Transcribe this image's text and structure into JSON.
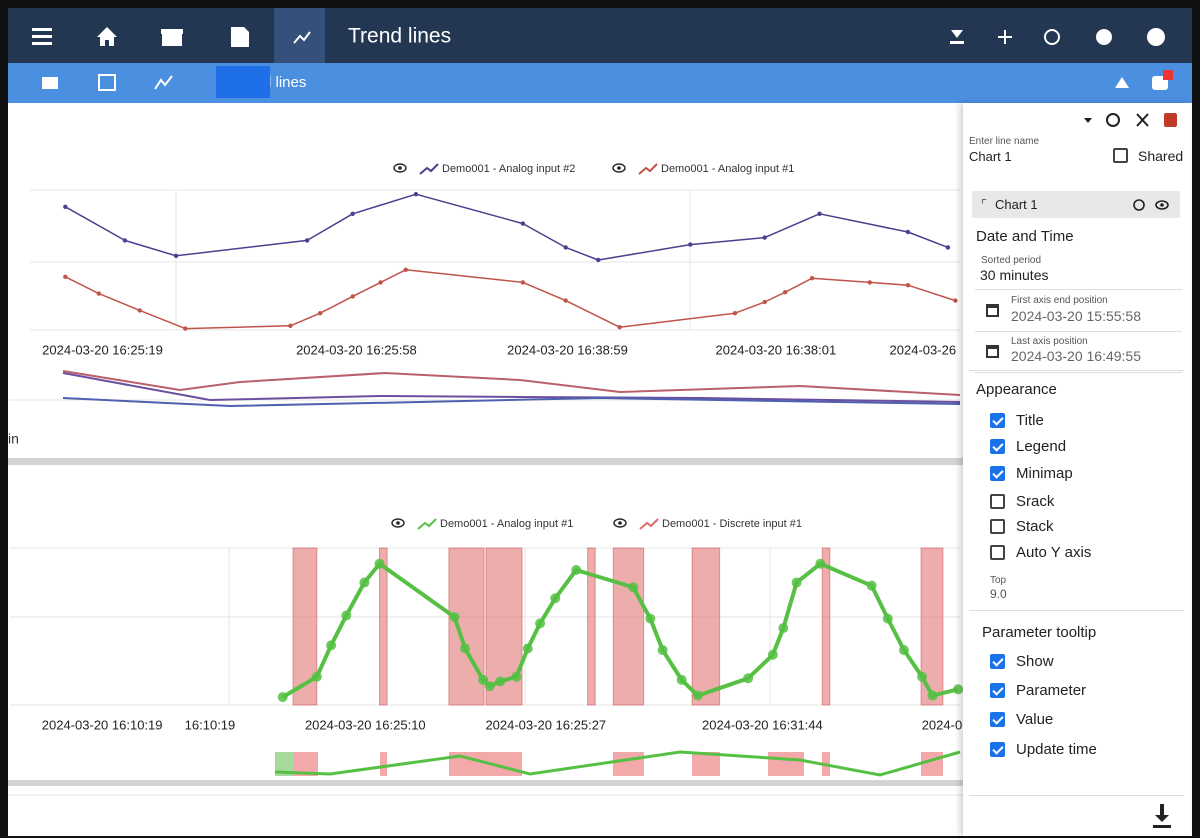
{
  "toolbar": {
    "title": "Trend lines"
  },
  "subbar": {
    "title": "d lines"
  },
  "side_text": "in",
  "charts": [
    {
      "type": "line",
      "xlim": [
        0,
        100
      ],
      "ylim": [
        0,
        100
      ],
      "xticks": [
        {
          "value": 7.8,
          "label": "2024-03-20 16:25:19"
        },
        {
          "value": 35.1,
          "label": "2024-03-20 16:25:58"
        },
        {
          "value": 57.8,
          "label": "2024-03-20 16:38:59"
        },
        {
          "value": 80.2,
          "label": "2024-03-20 16:38:01"
        },
        {
          "value": 96,
          "label": "2024-03-26"
        }
      ],
      "series": [
        {
          "name": "Demo001 - Analog input #2",
          "color": "#4b3f8f",
          "x": [
            3.8,
            10.2,
            15.7,
            29.8,
            34.7,
            41.5,
            53,
            57.6,
            61.1,
            71,
            79,
            84.9,
            94.4,
            98.7
          ],
          "values": [
            88,
            64,
            53,
            64,
            83,
            97,
            76,
            59,
            50,
            61,
            66,
            83,
            70,
            59
          ]
        },
        {
          "name": "Demo001 - Analog input #1",
          "color": "#c0544a",
          "x": [
            3.8,
            7.4,
            11.8,
            16.7,
            28,
            31.2,
            34.7,
            37.7,
            40.4,
            53,
            57.6,
            63.4,
            75.8,
            79,
            81.2,
            84.1,
            90.3,
            94.4,
            99.5
          ],
          "values": [
            38,
            26,
            14,
            1,
            3,
            12,
            24,
            34,
            43,
            34,
            21,
            2,
            12,
            20,
            27,
            37,
            34,
            32,
            21
          ]
        }
      ]
    },
    {
      "type": "line",
      "xlim": [
        0,
        100
      ],
      "ylim": [
        0,
        100
      ],
      "xticks": [
        {
          "value": 9.7,
          "label": "2024-03-20 16:10:19"
        },
        {
          "value": 21.05,
          "label": "16:10:19"
        },
        {
          "value": 37.4,
          "label": "2024-03-20 16:25:10"
        },
        {
          "value": 56.4,
          "label": "2024-03-20 16:25:27"
        },
        {
          "value": 79.2,
          "label": "2024-03-20 16:31:44"
        },
        {
          "value": 98.1,
          "label": "2024-0"
        }
      ],
      "series": [
        {
          "name": "Demo001 - Analog input #1",
          "color": "#55c043",
          "x": [
            28.7,
            32.3,
            33.8,
            35.4,
            37.3,
            38.9,
            46.8,
            47.9,
            49.8,
            50.5,
            51.6,
            53.3,
            54.5,
            55.8,
            57.4,
            59.6,
            65.6,
            67.4,
            68.7,
            70.7,
            72.4,
            77.7,
            80.3,
            81.4,
            82.8,
            85.3,
            90.7,
            92.4,
            94.1,
            96,
            97.1,
            99.8
          ],
          "values": [
            5,
            18,
            38,
            57,
            78,
            90,
            56,
            36,
            16,
            12,
            15,
            18,
            36,
            52,
            68,
            86,
            75,
            55,
            35,
            16,
            6,
            17,
            32,
            49,
            78,
            90,
            76,
            55,
            35,
            18,
            6,
            10
          ]
        }
      ],
      "periods": {
        "name": "Demo001 - Discrete input #1",
        "color": "#e06a6a",
        "start": [
          29.8,
          38.9,
          46.2,
          50.1,
          60.8,
          63.5,
          71.8,
          85.5,
          95.9
        ],
        "end": [
          32.3,
          39.7,
          49.9,
          53.9,
          61.6,
          66.7,
          74.7,
          86.3,
          98.2
        ]
      }
    }
  ],
  "panel": {
    "name_label": "Enter line name",
    "name_value": "Chart 1",
    "shared": {
      "label": "Shared",
      "checked": false
    },
    "item": "Chart 1",
    "date_section": "Date and Time",
    "fields": [
      {
        "label": "Sorted period",
        "value": "30 minutes"
      },
      {
        "label": "First axis end position",
        "value": "2024-03-20 15:55:58"
      },
      {
        "label": "Last axis position",
        "value": "2024-03-20 16:49:55"
      }
    ],
    "appearance": {
      "title": "Appearance",
      "options": [
        {
          "label": "Title",
          "checked": true
        },
        {
          "label": "Legend",
          "checked": true
        },
        {
          "label": "Minimap",
          "checked": true
        },
        {
          "label": "Srack",
          "checked": false
        },
        {
          "label": "Stack",
          "checked": false
        },
        {
          "label": "Auto Y axis",
          "checked": false
        }
      ],
      "top_label": "Top",
      "top_value": "9.0"
    },
    "tooltip": {
      "title": "Parameter tooltip",
      "options": [
        {
          "label": "Show",
          "checked": true
        },
        {
          "label": "Parameter",
          "checked": true
        },
        {
          "label": "Value",
          "checked": true
        },
        {
          "label": "Update time",
          "checked": true
        }
      ]
    }
  }
}
